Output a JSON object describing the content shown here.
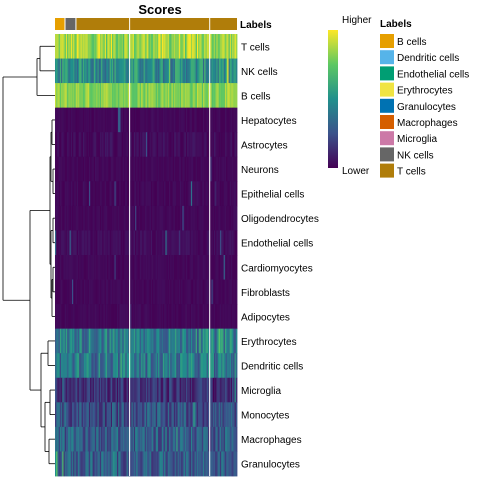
{
  "chart_data": {
    "type": "heatmap",
    "title": "Scores",
    "annotation_title": "Labels",
    "rows": [
      "T cells",
      "NK cells",
      "B cells",
      "Hepatocytes",
      "Astrocytes",
      "Neurons",
      "Epithelial cells",
      "Oligodendrocytes",
      "Endothelial cells",
      "Cardiomyocytes",
      "Fibroblasts",
      "Adipocytes",
      "Erythrocytes",
      "Dendritic cells",
      "Microglia",
      "Monocytes",
      "Macrophages",
      "Granulocytes"
    ],
    "row_level": [
      0.85,
      0.5,
      0.82,
      0.02,
      0.03,
      0.02,
      0.02,
      0.02,
      0.03,
      0.02,
      0.02,
      0.02,
      0.42,
      0.4,
      0.15,
      0.25,
      0.3,
      0.3
    ],
    "row_noise": [
      0.15,
      0.18,
      0.1,
      0.02,
      0.05,
      0.02,
      0.03,
      0.02,
      0.04,
      0.02,
      0.02,
      0.02,
      0.18,
      0.18,
      0.12,
      0.15,
      0.15,
      0.15
    ],
    "column_groups": [
      {
        "label": "B cells",
        "fraction": 0.055,
        "color": "#E69F00"
      },
      {
        "label": "NK cells",
        "fraction": 0.06,
        "color": "#666666"
      },
      {
        "label": "T cells",
        "fraction": 0.885,
        "color": "#B07D0A"
      }
    ],
    "legend_labels": [
      {
        "label": "B cells",
        "color": "#E69F00"
      },
      {
        "label": "Dendritic cells",
        "color": "#56B4E9"
      },
      {
        "label": "Endothelial cells",
        "color": "#009E73"
      },
      {
        "label": "Erythrocytes",
        "color": "#F0E442"
      },
      {
        "label": "Granulocytes",
        "color": "#0072B2"
      },
      {
        "label": "Macrophages",
        "color": "#D55E00"
      },
      {
        "label": "Microglia",
        "color": "#CC79A7"
      },
      {
        "label": "NK cells",
        "color": "#666666"
      },
      {
        "label": "T cells",
        "color": "#B07D0A"
      }
    ],
    "colorbar": {
      "high": "Higher",
      "low": "Lower",
      "colors": [
        "#440154",
        "#3B528B",
        "#21908C",
        "#5DC863",
        "#FDE725"
      ]
    }
  }
}
